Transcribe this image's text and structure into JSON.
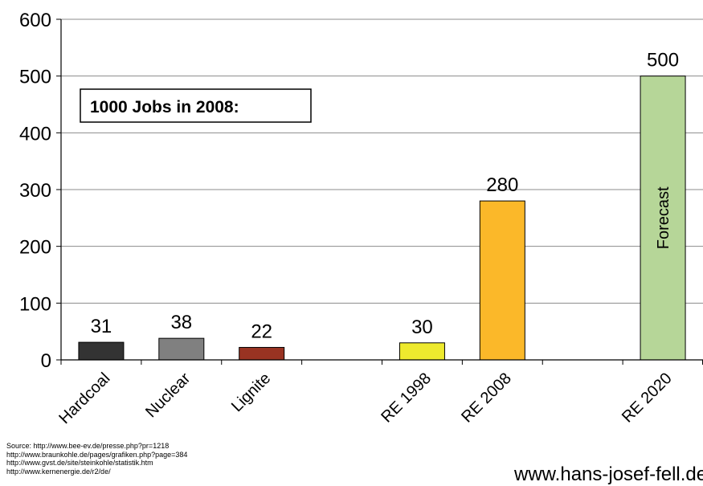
{
  "chart_data": {
    "type": "bar",
    "categories": [
      "Hardcoal",
      "Nuclear",
      "Lignite",
      "",
      "RE 1998",
      "RE 2008",
      "",
      "RE 2020"
    ],
    "values": [
      31,
      38,
      22,
      null,
      30,
      280,
      null,
      500
    ],
    "data_labels": [
      "31",
      "38",
      "22",
      "",
      "30",
      "280",
      "",
      "500"
    ],
    "colors": [
      "#333333",
      "#808080",
      "#993322",
      "",
      "#eeea2e",
      "#fbb829",
      "",
      "#b6d698"
    ],
    "ylim": [
      0,
      600
    ],
    "yticks": [
      0,
      100,
      200,
      300,
      400,
      500,
      600
    ],
    "grid": true,
    "annotation": "1000 Jobs in 2008:",
    "bar_note": "Forecast"
  },
  "sources": [
    "Source: http://www.bee-ev.de/presse.php?pr=1218",
    "http://www.braunkohle.de/pages/grafiken.php?page=384",
    "http://www.gvst.de/site/steinkohle/statistik.htm",
    "http://www.kernenergie.de/r2/de/"
  ],
  "website": "www.hans-josef-fell.de"
}
